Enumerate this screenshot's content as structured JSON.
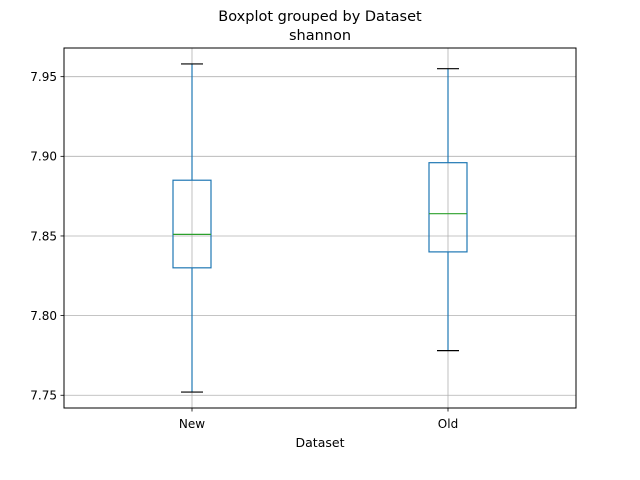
{
  "chart_data": {
    "type": "box",
    "title": "Boxplot grouped by Dataset",
    "subtitle": "shannon",
    "xlabel": "Dataset",
    "ylabel": "",
    "ylim": [
      7.742,
      7.968
    ],
    "yticks": [
      7.75,
      7.8,
      7.85,
      7.9,
      7.95
    ],
    "ytick_labels": [
      "7.75",
      "7.80",
      "7.85",
      "7.90",
      "7.95"
    ],
    "grid": true,
    "categories": [
      "New",
      "Old"
    ],
    "boxes": [
      {
        "category": "New",
        "whisker_low": 7.752,
        "q1": 7.83,
        "median": 7.851,
        "q3": 7.885,
        "whisker_high": 7.958
      },
      {
        "category": "Old",
        "whisker_low": 7.778,
        "q1": 7.84,
        "median": 7.864,
        "q3": 7.896,
        "whisker_high": 7.955
      }
    ],
    "colors": {
      "box": "#1f77b4",
      "median": "#2ca02c",
      "whisker": "#1f77b4",
      "cap": "#000000",
      "grid": "#b0b0b0"
    }
  }
}
